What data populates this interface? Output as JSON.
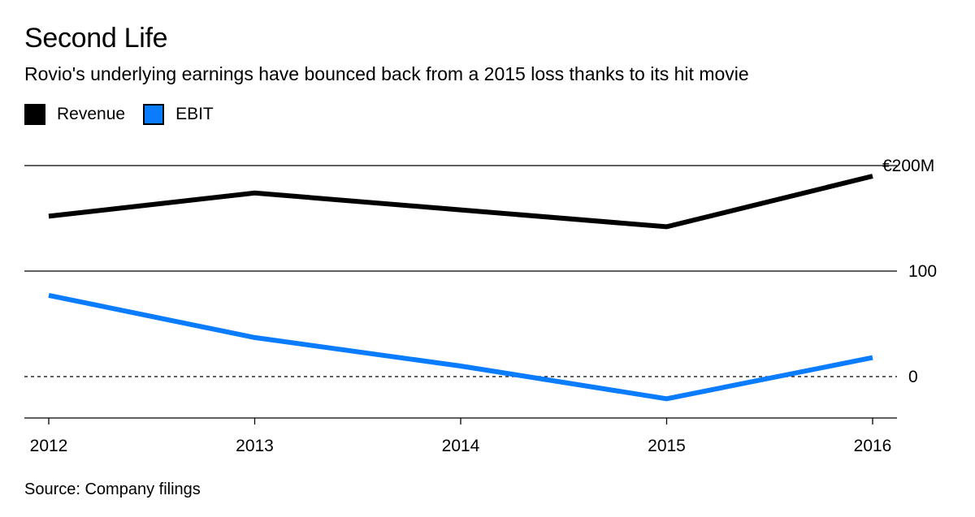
{
  "title": "Second Life",
  "subtitle": "Rovio's underlying earnings have bounced back from a 2015 loss thanks to its hit movie",
  "source": "Source: Company filings",
  "colors": {
    "revenue": "#000000",
    "ebit": "#0a7cff"
  },
  "chart_data": {
    "type": "line",
    "title": "Second Life",
    "x": [
      2012,
      2013,
      2014,
      2015,
      2016
    ],
    "x_tick_labels": [
      "2012",
      "2013",
      "2014",
      "2015",
      "2016"
    ],
    "y_ticks": [
      {
        "value": 200,
        "label": "€200M"
      },
      {
        "value": 100,
        "label": "100"
      },
      {
        "value": 0,
        "label": "0"
      }
    ],
    "ylim": [
      -40,
      200
    ],
    "series": [
      {
        "name": "Revenue",
        "values": [
          152,
          174,
          158,
          142,
          190
        ]
      },
      {
        "name": "EBIT",
        "values": [
          77,
          37,
          10,
          -21,
          18
        ]
      }
    ],
    "xlabel": "",
    "ylabel": "",
    "legend_position": "top-left"
  }
}
